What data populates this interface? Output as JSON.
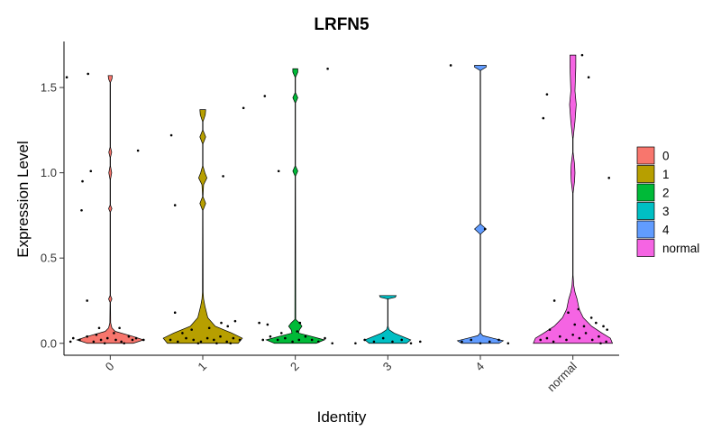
{
  "chart_data": {
    "type": "violin",
    "title": "LRFN5",
    "xlabel": "Identity",
    "ylabel": "Expression Level",
    "categories": [
      "0",
      "1",
      "2",
      "3",
      "4",
      "normal"
    ],
    "x_tick_labels": [
      "0",
      "1",
      "2",
      "3",
      "4",
      "normal"
    ],
    "y_ticks": [
      0.0,
      0.5,
      1.0,
      1.5
    ],
    "y_tick_labels": [
      "0.0",
      "0.5",
      "1.0",
      "1.5"
    ],
    "ylim": [
      -0.07,
      1.77
    ],
    "grid": false,
    "legend_position": "right",
    "legend": [
      {
        "label": "0",
        "color": "#F8766D"
      },
      {
        "label": "1",
        "color": "#B79F00"
      },
      {
        "label": "2",
        "color": "#00BA38"
      },
      {
        "label": "3",
        "color": "#00BFC4"
      },
      {
        "label": "4",
        "color": "#619CFF"
      },
      {
        "label": "normal",
        "color": "#F564E3"
      }
    ],
    "series": [
      {
        "name": "0",
        "color": "#F8766D",
        "max": 1.57,
        "density": [
          [
            0,
            0.55
          ],
          [
            0.02,
            0.8
          ],
          [
            0.04,
            0.55
          ],
          [
            0.07,
            0.12
          ],
          [
            0.09,
            0.04
          ],
          [
            0.12,
            0.01
          ],
          [
            0.24,
            0.005
          ],
          [
            0.26,
            0.04
          ],
          [
            0.28,
            0.005
          ],
          [
            0.77,
            0.005
          ],
          [
            0.79,
            0.04
          ],
          [
            0.81,
            0.005
          ],
          [
            0.96,
            0.005
          ],
          [
            1.0,
            0.035
          ],
          [
            1.04,
            0.005
          ],
          [
            1.09,
            0.005
          ],
          [
            1.12,
            0.035
          ],
          [
            1.15,
            0.005
          ],
          [
            1.53,
            0.005
          ],
          [
            1.55,
            0.04
          ],
          [
            1.57,
            0.05
          ]
        ],
        "points": [
          [
            -0.47,
            1.56
          ],
          [
            -0.24,
            1.58
          ],
          [
            -0.3,
            0.95
          ],
          [
            -0.21,
            1.01
          ],
          [
            0.3,
            1.13
          ],
          [
            -0.31,
            0.78
          ],
          [
            -0.25,
            0.25
          ],
          [
            -0.12,
            0.09
          ],
          [
            0.1,
            0.09
          ],
          [
            -0.4,
            0.03
          ],
          [
            -0.33,
            0.02
          ],
          [
            -0.25,
            0.04
          ],
          [
            -0.18,
            0.01
          ],
          [
            -0.1,
            0.02
          ],
          [
            -0.03,
            0.03
          ],
          [
            0.06,
            0.02
          ],
          [
            0.12,
            0.01
          ],
          [
            0.2,
            0.04
          ],
          [
            0.28,
            0.03
          ],
          [
            0.36,
            0.02
          ],
          [
            -0.43,
            0.01
          ],
          [
            -0.06,
            0.0
          ],
          [
            0.15,
            0.0
          ],
          [
            0.24,
            0.02
          ],
          [
            -0.15,
            0.05
          ],
          [
            0.04,
            0.06
          ]
        ]
      },
      {
        "name": "1",
        "color": "#B79F00",
        "max": 1.37,
        "density": [
          [
            0,
            0.85
          ],
          [
            0.03,
            0.95
          ],
          [
            0.06,
            0.7
          ],
          [
            0.1,
            0.3
          ],
          [
            0.15,
            0.12
          ],
          [
            0.22,
            0.05
          ],
          [
            0.26,
            0.02
          ],
          [
            0.3,
            0.008
          ],
          [
            0.78,
            0.005
          ],
          [
            0.82,
            0.07
          ],
          [
            0.86,
            0.005
          ],
          [
            0.93,
            0.02
          ],
          [
            0.97,
            0.1
          ],
          [
            1.0,
            0.05
          ],
          [
            1.04,
            0.005
          ],
          [
            1.17,
            0.005
          ],
          [
            1.21,
            0.07
          ],
          [
            1.25,
            0.005
          ],
          [
            1.3,
            0.005
          ],
          [
            1.34,
            0.06
          ],
          [
            1.37,
            0.07
          ]
        ],
        "points": [
          [
            -0.34,
            1.22
          ],
          [
            0.44,
            1.38
          ],
          [
            -0.3,
            0.81
          ],
          [
            0.22,
            0.98
          ],
          [
            -0.3,
            0.18
          ],
          [
            -0.22,
            0.06
          ],
          [
            0.2,
            0.12
          ],
          [
            0.27,
            0.1
          ],
          [
            0.35,
            0.13
          ],
          [
            -0.35,
            0.02
          ],
          [
            -0.27,
            0.01
          ],
          [
            -0.18,
            0.03
          ],
          [
            -0.1,
            0.02
          ],
          [
            -0.02,
            0.01
          ],
          [
            0.05,
            0.03
          ],
          [
            0.12,
            0.02
          ],
          [
            0.19,
            0.04
          ],
          [
            0.26,
            0.01
          ],
          [
            0.33,
            0.03
          ],
          [
            0.4,
            0.02
          ],
          [
            -0.12,
            0.08
          ],
          [
            0.07,
            0.09
          ],
          [
            0.15,
            0.0
          ],
          [
            0.3,
            0.0
          ],
          [
            -0.05,
            0.0
          ]
        ]
      },
      {
        "name": "2",
        "color": "#00BA38",
        "max": 1.61,
        "density": [
          [
            0,
            0.5
          ],
          [
            0.02,
            0.7
          ],
          [
            0.04,
            0.4
          ],
          [
            0.06,
            0.08
          ],
          [
            0.08,
            0.1
          ],
          [
            0.1,
            0.16
          ],
          [
            0.12,
            0.1
          ],
          [
            0.14,
            0.01
          ],
          [
            0.98,
            0.005
          ],
          [
            1.01,
            0.06
          ],
          [
            1.04,
            0.005
          ],
          [
            1.41,
            0.005
          ],
          [
            1.44,
            0.06
          ],
          [
            1.47,
            0.005
          ],
          [
            1.56,
            0.005
          ],
          [
            1.59,
            0.06
          ],
          [
            1.61,
            0.06
          ]
        ],
        "points": [
          [
            -0.33,
            1.45
          ],
          [
            0.35,
            1.61
          ],
          [
            -0.18,
            1.01
          ],
          [
            -0.39,
            0.12
          ],
          [
            -0.3,
            0.11
          ],
          [
            0.05,
            0.12
          ],
          [
            -0.35,
            0.02
          ],
          [
            -0.27,
            0.04
          ],
          [
            -0.19,
            0.02
          ],
          [
            -0.11,
            0.03
          ],
          [
            -0.03,
            0.01
          ],
          [
            0.04,
            0.02
          ],
          [
            0.11,
            0.04
          ],
          [
            0.18,
            0.02
          ],
          [
            0.25,
            0.01
          ],
          [
            0.32,
            0.03
          ],
          [
            0.4,
            0.0
          ],
          [
            -0.15,
            0.06
          ],
          [
            0.02,
            0.07
          ]
        ]
      },
      {
        "name": "3",
        "color": "#00BFC4",
        "max": 0.28,
        "density": [
          [
            0,
            0.45
          ],
          [
            0.02,
            0.55
          ],
          [
            0.04,
            0.35
          ],
          [
            0.06,
            0.15
          ],
          [
            0.08,
            0.03
          ],
          [
            0.1,
            0.005
          ],
          [
            0.26,
            0.005
          ],
          [
            0.27,
            0.18
          ],
          [
            0.28,
            0.2
          ]
        ],
        "points": [
          [
            -0.25,
            0.02
          ],
          [
            -0.15,
            0.01
          ],
          [
            -0.05,
            0.03
          ],
          [
            0.05,
            0.01
          ],
          [
            0.15,
            0.02
          ],
          [
            0.25,
            0.0
          ],
          [
            0.35,
            0.01
          ],
          [
            -0.35,
            0.0
          ]
        ]
      },
      {
        "name": "4",
        "color": "#619CFF",
        "max": 1.63,
        "density": [
          [
            0,
            0.45
          ],
          [
            0.015,
            0.55
          ],
          [
            0.03,
            0.3
          ],
          [
            0.045,
            0.06
          ],
          [
            0.06,
            0.005
          ],
          [
            0.64,
            0.005
          ],
          [
            0.67,
            0.14
          ],
          [
            0.7,
            0.005
          ],
          [
            1.6,
            0.005
          ],
          [
            1.62,
            0.14
          ],
          [
            1.63,
            0.14
          ]
        ],
        "points": [
          [
            -0.32,
            1.63
          ],
          [
            0.05,
            0.67
          ],
          [
            -0.2,
            0.01
          ],
          [
            -0.1,
            0.02
          ],
          [
            0.0,
            0.0
          ],
          [
            0.1,
            0.01
          ],
          [
            0.2,
            0.02
          ],
          [
            0.3,
            0.0
          ]
        ]
      },
      {
        "name": "normal",
        "color": "#F564E3",
        "max": 1.69,
        "density": [
          [
            0,
            0.95
          ],
          [
            0.03,
            0.9
          ],
          [
            0.06,
            0.7
          ],
          [
            0.1,
            0.45
          ],
          [
            0.15,
            0.25
          ],
          [
            0.2,
            0.15
          ],
          [
            0.26,
            0.1
          ],
          [
            0.3,
            0.05
          ],
          [
            0.34,
            0.02
          ],
          [
            0.4,
            0.005
          ],
          [
            0.88,
            0.005
          ],
          [
            0.95,
            0.04
          ],
          [
            1.0,
            0.05
          ],
          [
            1.05,
            0.04
          ],
          [
            1.12,
            0.005
          ],
          [
            1.2,
            0.005
          ],
          [
            1.3,
            0.05
          ],
          [
            1.4,
            0.08
          ],
          [
            1.48,
            0.05
          ],
          [
            1.55,
            0.06
          ],
          [
            1.62,
            0.07
          ],
          [
            1.69,
            0.07
          ]
        ],
        "points": [
          [
            -0.32,
            1.32
          ],
          [
            -0.28,
            1.46
          ],
          [
            0.1,
            1.69
          ],
          [
            0.17,
            1.56
          ],
          [
            0.39,
            0.97
          ],
          [
            -0.2,
            0.25
          ],
          [
            -0.05,
            0.18
          ],
          [
            0.06,
            0.2
          ],
          [
            0.12,
            0.1
          ],
          [
            0.2,
            0.15
          ],
          [
            0.25,
            0.12
          ],
          [
            0.33,
            0.1
          ],
          [
            0.37,
            0.08
          ],
          [
            -0.35,
            0.02
          ],
          [
            -0.28,
            0.03
          ],
          [
            -0.21,
            0.01
          ],
          [
            -0.14,
            0.04
          ],
          [
            -0.07,
            0.02
          ],
          [
            0.0,
            0.05
          ],
          [
            0.07,
            0.03
          ],
          [
            0.14,
            0.06
          ],
          [
            0.21,
            0.02
          ],
          [
            0.28,
            0.04
          ],
          [
            0.36,
            0.01
          ],
          [
            -0.25,
            0.08
          ],
          [
            0.02,
            0.11
          ],
          [
            0.3,
            0.0
          ]
        ]
      }
    ]
  }
}
